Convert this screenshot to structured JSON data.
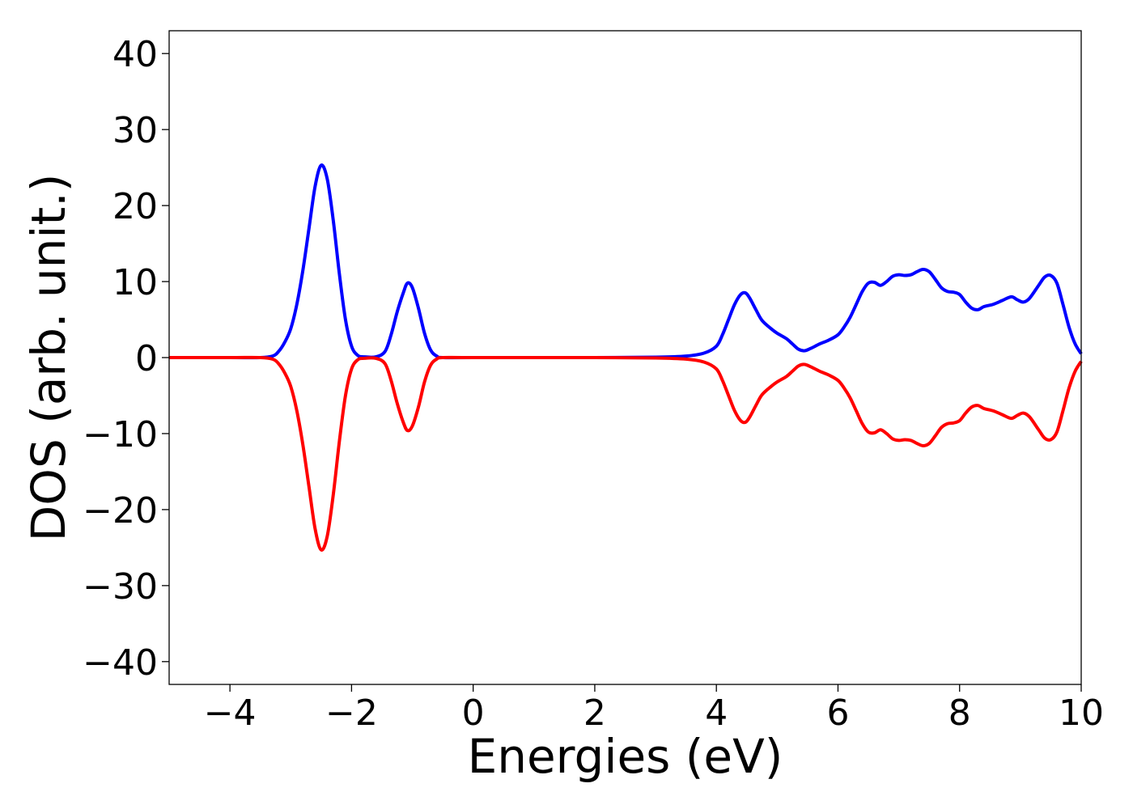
{
  "chart_data": {
    "type": "line",
    "xlabel": "Energies (eV)",
    "ylabel": "DOS (arb. unit.)",
    "xlim": [
      -5,
      10
    ],
    "ylim": [
      -43,
      43
    ],
    "x_ticks": [
      -4,
      -2,
      0,
      2,
      4,
      6,
      8,
      10
    ],
    "x_tick_labels": [
      "−4",
      "−2",
      "0",
      "2",
      "4",
      "6",
      "8",
      "10"
    ],
    "y_ticks": [
      40,
      30,
      20,
      10,
      0,
      -10,
      -20,
      -30,
      -40
    ],
    "y_tick_labels": [
      "40",
      "30",
      "20",
      "10",
      "0",
      "−10",
      "−20",
      "−30",
      "−40"
    ],
    "grid": false,
    "legend": "none",
    "series": [
      {
        "color": "#0000ff",
        "points": [
          [
            -5.0,
            0
          ],
          [
            -4.0,
            0
          ],
          [
            -3.5,
            0
          ],
          [
            -3.3,
            0.2
          ],
          [
            -3.2,
            0.8
          ],
          [
            -3.1,
            2.0
          ],
          [
            -3.0,
            3.8
          ],
          [
            -2.9,
            7.0
          ],
          [
            -2.8,
            11.5
          ],
          [
            -2.7,
            17.0
          ],
          [
            -2.6,
            22.5
          ],
          [
            -2.5,
            25.3
          ],
          [
            -2.4,
            23.5
          ],
          [
            -2.3,
            18.0
          ],
          [
            -2.2,
            11.0
          ],
          [
            -2.1,
            5.0
          ],
          [
            -2.0,
            1.5
          ],
          [
            -1.9,
            0.3
          ],
          [
            -1.8,
            0.1
          ],
          [
            -1.6,
            0.1
          ],
          [
            -1.45,
            0.8
          ],
          [
            -1.35,
            3.0
          ],
          [
            -1.25,
            6.0
          ],
          [
            -1.15,
            8.5
          ],
          [
            -1.08,
            9.8
          ],
          [
            -1.0,
            9.2
          ],
          [
            -0.9,
            6.5
          ],
          [
            -0.8,
            3.2
          ],
          [
            -0.7,
            1.0
          ],
          [
            -0.6,
            0.2
          ],
          [
            -0.5,
            0
          ],
          [
            0,
            0
          ],
          [
            2.0,
            0
          ],
          [
            3.0,
            0.05
          ],
          [
            3.5,
            0.2
          ],
          [
            3.8,
            0.6
          ],
          [
            4.0,
            1.5
          ],
          [
            4.1,
            3.0
          ],
          [
            4.2,
            5.0
          ],
          [
            4.3,
            7.0
          ],
          [
            4.4,
            8.3
          ],
          [
            4.48,
            8.5
          ],
          [
            4.55,
            7.8
          ],
          [
            4.65,
            6.3
          ],
          [
            4.75,
            4.9
          ],
          [
            4.9,
            3.8
          ],
          [
            5.0,
            3.2
          ],
          [
            5.15,
            2.5
          ],
          [
            5.25,
            1.8
          ],
          [
            5.35,
            1.1
          ],
          [
            5.45,
            0.9
          ],
          [
            5.55,
            1.2
          ],
          [
            5.7,
            1.8
          ],
          [
            5.85,
            2.3
          ],
          [
            6.0,
            3.0
          ],
          [
            6.1,
            4.0
          ],
          [
            6.2,
            5.3
          ],
          [
            6.3,
            7.0
          ],
          [
            6.4,
            8.7
          ],
          [
            6.5,
            9.8
          ],
          [
            6.6,
            9.9
          ],
          [
            6.7,
            9.5
          ],
          [
            6.8,
            10.0
          ],
          [
            6.9,
            10.7
          ],
          [
            7.0,
            10.9
          ],
          [
            7.1,
            10.8
          ],
          [
            7.2,
            10.9
          ],
          [
            7.3,
            11.3
          ],
          [
            7.4,
            11.6
          ],
          [
            7.5,
            11.3
          ],
          [
            7.6,
            10.3
          ],
          [
            7.7,
            9.2
          ],
          [
            7.8,
            8.7
          ],
          [
            7.9,
            8.6
          ],
          [
            8.0,
            8.3
          ],
          [
            8.1,
            7.3
          ],
          [
            8.2,
            6.5
          ],
          [
            8.3,
            6.3
          ],
          [
            8.4,
            6.7
          ],
          [
            8.55,
            7.0
          ],
          [
            8.7,
            7.5
          ],
          [
            8.85,
            8.0
          ],
          [
            8.95,
            7.6
          ],
          [
            9.05,
            7.3
          ],
          [
            9.15,
            7.8
          ],
          [
            9.3,
            9.5
          ],
          [
            9.4,
            10.6
          ],
          [
            9.5,
            10.8
          ],
          [
            9.6,
            9.8
          ],
          [
            9.7,
            7.0
          ],
          [
            9.8,
            4.0
          ],
          [
            9.9,
            1.8
          ],
          [
            10.0,
            0.5
          ]
        ]
      },
      {
        "color": "#ff0000",
        "points": [
          [
            -5.0,
            0
          ],
          [
            -4.0,
            0
          ],
          [
            -3.5,
            0
          ],
          [
            -3.3,
            -0.2
          ],
          [
            -3.2,
            -0.8
          ],
          [
            -3.1,
            -2.0
          ],
          [
            -3.0,
            -3.8
          ],
          [
            -2.9,
            -7.0
          ],
          [
            -2.8,
            -11.5
          ],
          [
            -2.7,
            -17.0
          ],
          [
            -2.6,
            -22.5
          ],
          [
            -2.5,
            -25.3
          ],
          [
            -2.4,
            -23.5
          ],
          [
            -2.3,
            -18.0
          ],
          [
            -2.2,
            -11.0
          ],
          [
            -2.1,
            -5.0
          ],
          [
            -2.0,
            -1.5
          ],
          [
            -1.9,
            -0.3
          ],
          [
            -1.8,
            -0.1
          ],
          [
            -1.6,
            -0.1
          ],
          [
            -1.45,
            -0.8
          ],
          [
            -1.35,
            -3.0
          ],
          [
            -1.25,
            -6.0
          ],
          [
            -1.15,
            -8.5
          ],
          [
            -1.08,
            -9.6
          ],
          [
            -1.0,
            -9.0
          ],
          [
            -0.9,
            -6.5
          ],
          [
            -0.8,
            -3.2
          ],
          [
            -0.7,
            -1.0
          ],
          [
            -0.6,
            -0.2
          ],
          [
            -0.5,
            0
          ],
          [
            0,
            0
          ],
          [
            2.0,
            0
          ],
          [
            3.0,
            -0.05
          ],
          [
            3.5,
            -0.2
          ],
          [
            3.8,
            -0.6
          ],
          [
            4.0,
            -1.5
          ],
          [
            4.1,
            -3.0
          ],
          [
            4.2,
            -5.0
          ],
          [
            4.3,
            -7.0
          ],
          [
            4.4,
            -8.3
          ],
          [
            4.48,
            -8.5
          ],
          [
            4.55,
            -7.8
          ],
          [
            4.65,
            -6.3
          ],
          [
            4.75,
            -4.9
          ],
          [
            4.9,
            -3.8
          ],
          [
            5.0,
            -3.2
          ],
          [
            5.15,
            -2.5
          ],
          [
            5.25,
            -1.8
          ],
          [
            5.35,
            -1.1
          ],
          [
            5.45,
            -0.9
          ],
          [
            5.55,
            -1.2
          ],
          [
            5.7,
            -1.8
          ],
          [
            5.85,
            -2.3
          ],
          [
            6.0,
            -3.0
          ],
          [
            6.1,
            -4.0
          ],
          [
            6.2,
            -5.3
          ],
          [
            6.3,
            -7.0
          ],
          [
            6.4,
            -8.7
          ],
          [
            6.5,
            -9.8
          ],
          [
            6.6,
            -9.9
          ],
          [
            6.7,
            -9.5
          ],
          [
            6.8,
            -10.0
          ],
          [
            6.9,
            -10.7
          ],
          [
            7.0,
            -10.9
          ],
          [
            7.1,
            -10.8
          ],
          [
            7.2,
            -10.9
          ],
          [
            7.3,
            -11.3
          ],
          [
            7.4,
            -11.6
          ],
          [
            7.5,
            -11.3
          ],
          [
            7.6,
            -10.3
          ],
          [
            7.7,
            -9.2
          ],
          [
            7.8,
            -8.7
          ],
          [
            7.9,
            -8.6
          ],
          [
            8.0,
            -8.3
          ],
          [
            8.1,
            -7.3
          ],
          [
            8.2,
            -6.5
          ],
          [
            8.3,
            -6.3
          ],
          [
            8.4,
            -6.7
          ],
          [
            8.55,
            -7.0
          ],
          [
            8.7,
            -7.5
          ],
          [
            8.85,
            -8.0
          ],
          [
            8.95,
            -7.6
          ],
          [
            9.05,
            -7.3
          ],
          [
            9.15,
            -7.8
          ],
          [
            9.3,
            -9.5
          ],
          [
            9.4,
            -10.6
          ],
          [
            9.5,
            -10.8
          ],
          [
            9.6,
            -9.8
          ],
          [
            9.7,
            -7.0
          ],
          [
            9.8,
            -4.0
          ],
          [
            9.9,
            -1.8
          ],
          [
            10.0,
            -0.5
          ]
        ]
      }
    ]
  }
}
